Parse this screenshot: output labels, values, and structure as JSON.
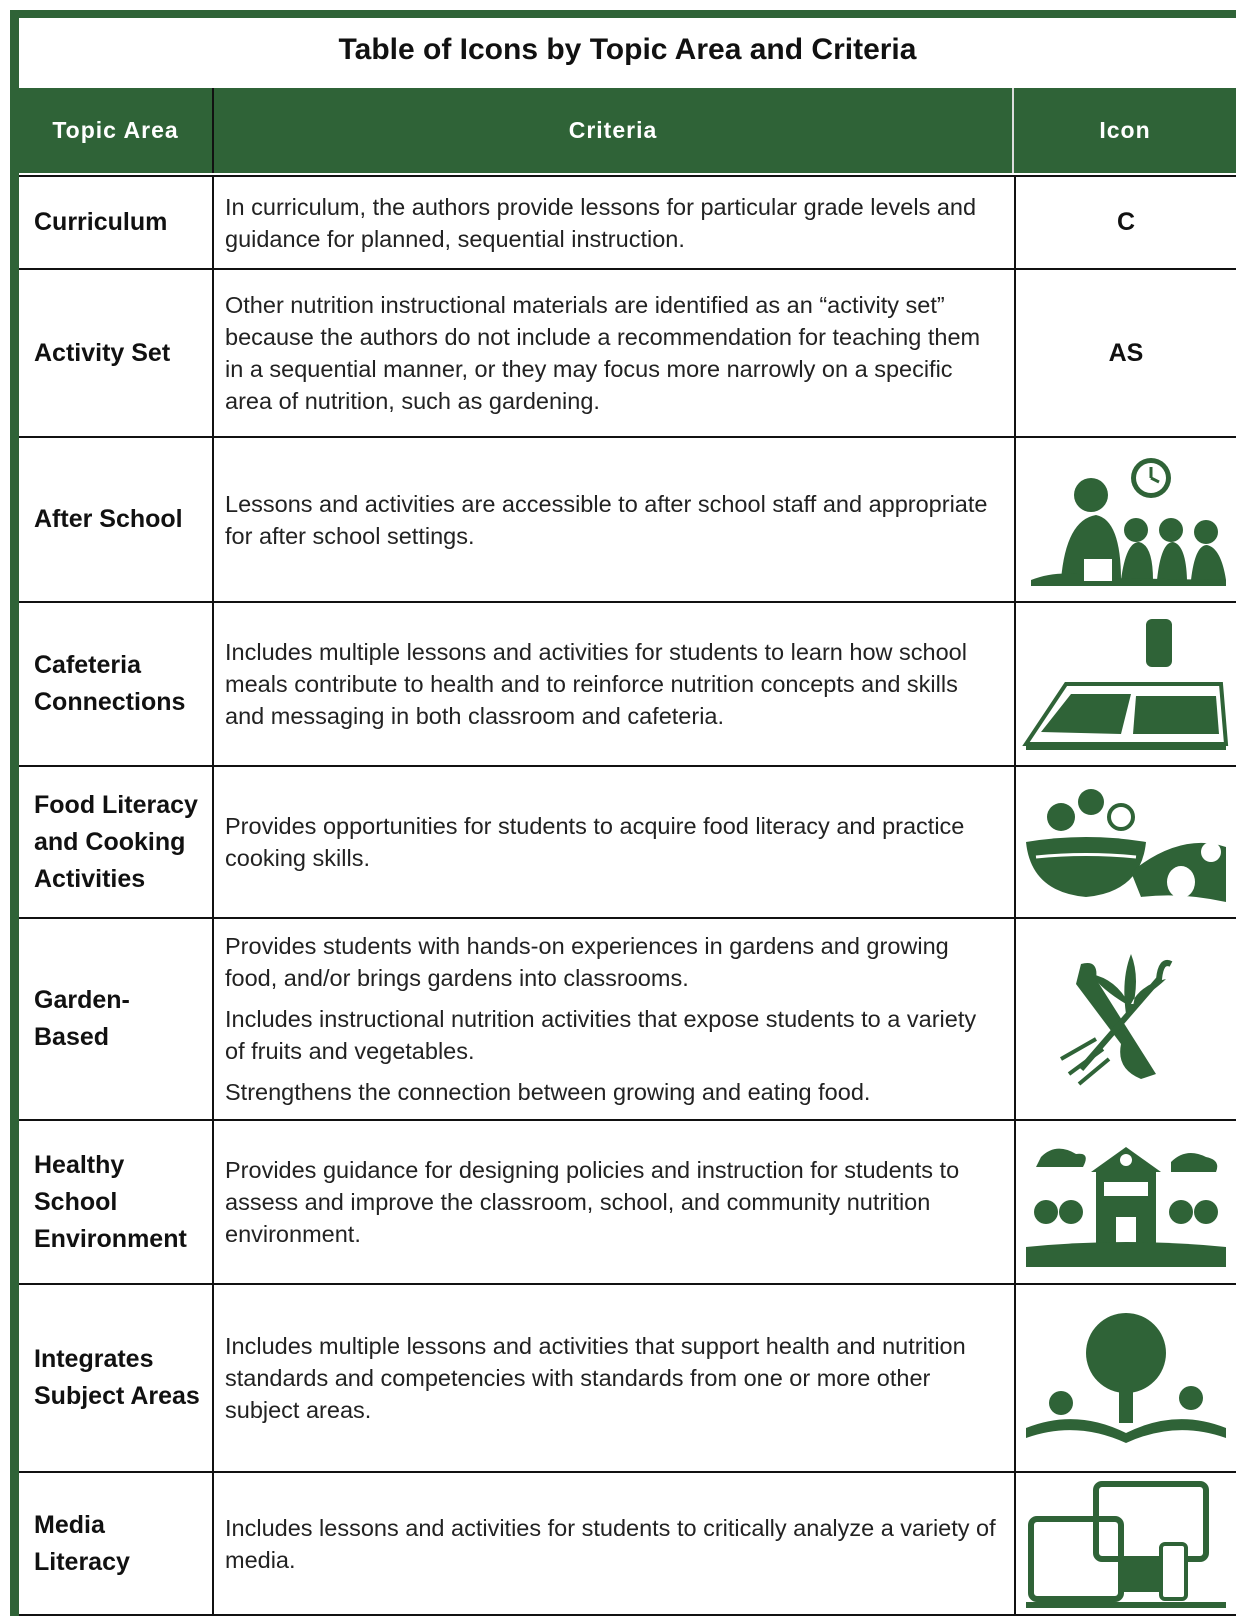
{
  "table": {
    "title": "Table of Icons by Topic Area and Criteria",
    "columns": [
      "Topic Area",
      "Criteria",
      "Icon"
    ],
    "rows": [
      {
        "topic": "Curriculum",
        "criteria": [
          "In curriculum, the authors provide lessons for particular grade levels and guidance for planned, sequential instruction."
        ],
        "icon": "C"
      },
      {
        "topic": "Activity Set",
        "criteria": [
          "Other nutrition instructional materials are identified as an “activity set” because the authors do not include a recommendation for teaching them in a sequential manner, or they may focus more narrowly on a specific area of nutrition, such as gardening."
        ],
        "icon": "AS"
      },
      {
        "topic": "After School",
        "criteria": [
          "Lessons and activities are accessible to after school staff and appropriate for after school settings."
        ]
      },
      {
        "topic": "Cafeteria Connections",
        "criteria": [
          "Includes multiple lessons and activities for students to learn how school meals contribute to health and to reinforce nutrition concepts and skills and messaging in both classroom and cafeteria."
        ]
      },
      {
        "topic": "Food Literacy and Cooking Activities",
        "criteria": [
          "Provides opportunities for students to acquire food literacy and practice cooking skills."
        ]
      },
      {
        "topic": "Garden-Based",
        "criteria": [
          "Provides students with hands-on experiences in gardens and growing food, and/or brings gardens into classrooms.",
          "Includes instructional nutrition activities that expose students to a variety of fruits and vegetables.",
          "Strengthens the connection between growing and eating food."
        ]
      },
      {
        "topic": "Healthy School Environment",
        "criteria": [
          "Provides guidance for designing policies and instruction for students to assess and improve the classroom, school, and community nutrition environment."
        ]
      },
      {
        "topic": "Integrates Subject Areas",
        "criteria": [
          "Includes multiple lessons and activities that support health and nutrition standards and competencies with standards from one or more other subject areas."
        ]
      },
      {
        "topic": "Media Literacy",
        "criteria": [
          "Includes lessons and activities for students to critically analyze a variety of media."
        ]
      }
    ]
  }
}
